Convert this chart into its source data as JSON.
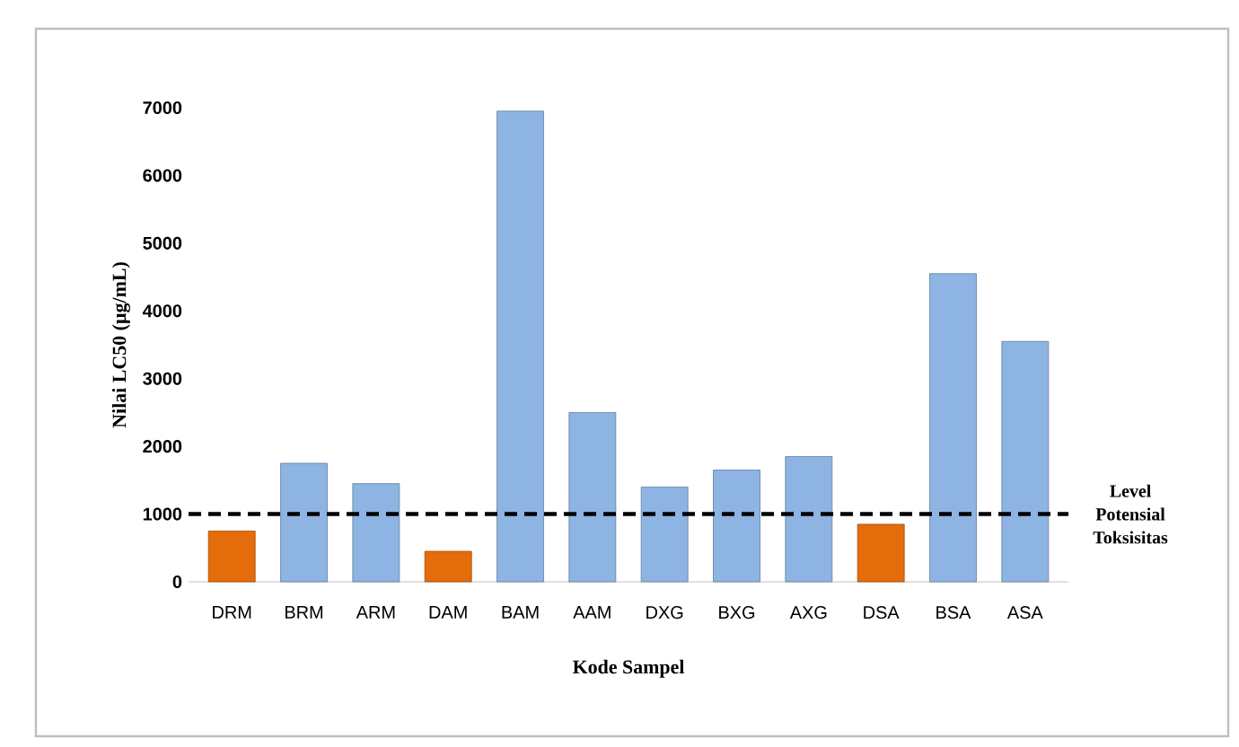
{
  "chart_data": {
    "type": "bar",
    "xlabel": "Kode Sampel",
    "ylabel": "Nilai LC50 (µg/mL)",
    "categories": [
      "DRM",
      "BRM",
      "ARM",
      "DAM",
      "BAM",
      "AAM",
      "DXG",
      "BXG",
      "AXG",
      "DSA",
      "BSA",
      "ASA"
    ],
    "values": [
      750,
      1750,
      1450,
      450,
      6950,
      2500,
      1400,
      1650,
      1850,
      850,
      4550,
      3550
    ],
    "colors": [
      "#e46c0a",
      "#8db4e2",
      "#8db4e2",
      "#e46c0a",
      "#8db4e2",
      "#8db4e2",
      "#8db4e2",
      "#8db4e2",
      "#8db4e2",
      "#e46c0a",
      "#8db4e2",
      "#8db4e2"
    ],
    "ylim": [
      0,
      7000
    ],
    "yticks": [
      0,
      1000,
      2000,
      3000,
      4000,
      5000,
      6000,
      7000
    ],
    "ref_lines": [
      {
        "axis": "y",
        "value": 1000,
        "label": "Level Potensial Toksisitas",
        "color": "#000000",
        "line_style": "dashed"
      }
    ]
  }
}
